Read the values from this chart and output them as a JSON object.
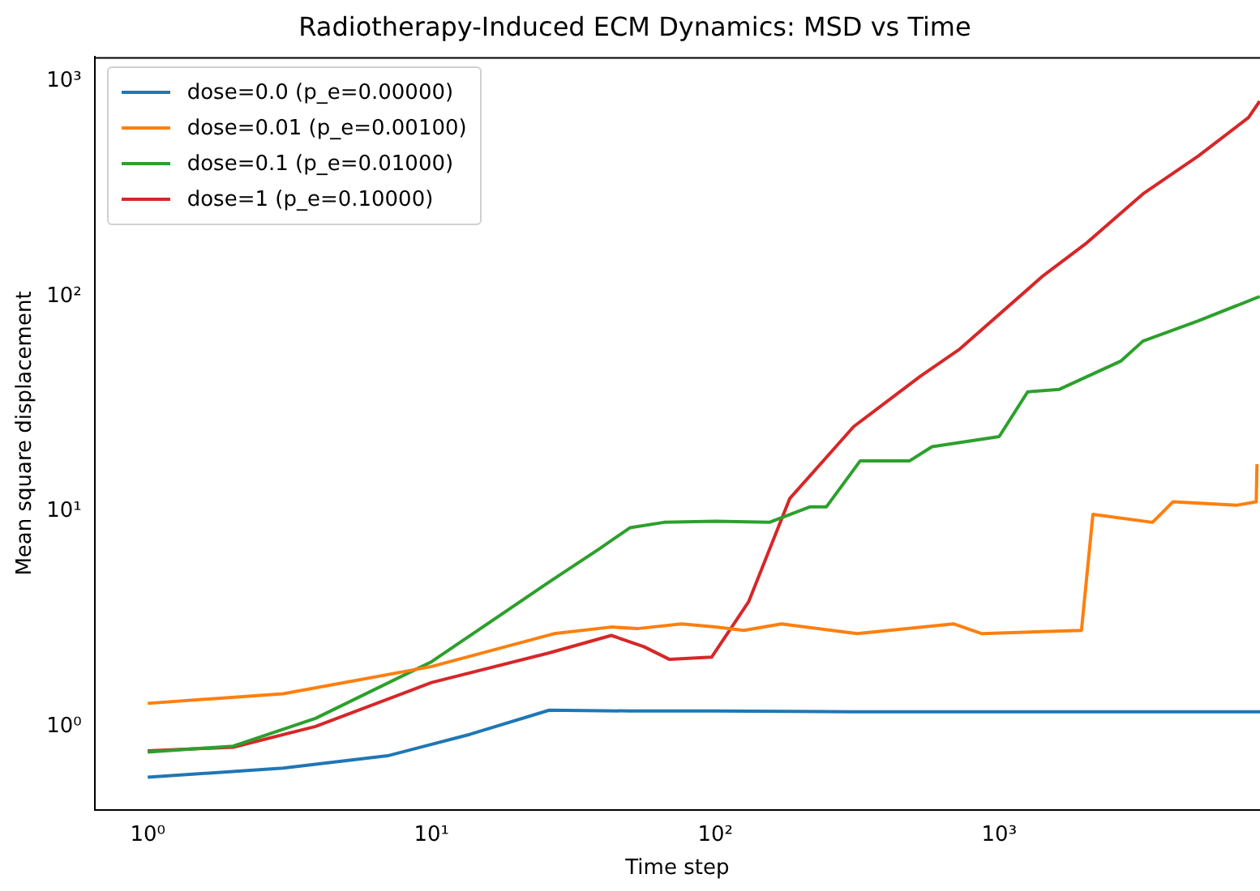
{
  "chart_data": {
    "type": "line",
    "title": "Radiotherapy-Induced ECM Dynamics: MSD vs Time",
    "xlabel": "Time step",
    "ylabel": "Mean square displacement",
    "log": "xy",
    "grid": false,
    "legend": "top left",
    "marker": "none",
    "line_style": "solid",
    "xlim": [
      0.65,
      8300
    ],
    "ylim": [
      0.41,
      1300
    ],
    "xticks": [
      {
        "value": 1,
        "label": "10⁰"
      },
      {
        "value": 10,
        "label": "10¹"
      },
      {
        "value": 100,
        "label": "10²"
      },
      {
        "value": 1000,
        "label": "10³"
      }
    ],
    "yticks": [
      {
        "value": 1,
        "label": "10⁰"
      },
      {
        "value": 10,
        "label": "10¹"
      },
      {
        "value": 100,
        "label": "10²"
      },
      {
        "value": 1000,
        "label": "10³"
      }
    ],
    "series": [
      {
        "name": "dose=0.0 (p_e=0.00000)",
        "color": "#1f77b4",
        "x": [
          1,
          3,
          7,
          13.7,
          26,
          50,
          100,
          300,
          1000,
          3000,
          8300
        ],
        "values": [
          0.58,
          0.64,
          0.73,
          0.92,
          1.19,
          1.18,
          1.18,
          1.17,
          1.17,
          1.17,
          1.17
        ]
      },
      {
        "name": "dose=0.01 (p_e=0.00100)",
        "color": "#ff7f0e",
        "x": [
          1,
          3,
          10,
          27,
          43,
          53,
          76,
          100,
          126,
          171,
          316,
          690,
          870,
          1950,
          2140,
          3470,
          4100,
          6900,
          8050,
          8100
        ],
        "values": [
          1.28,
          1.42,
          1.9,
          2.7,
          2.9,
          2.85,
          3.0,
          2.9,
          2.8,
          3.0,
          2.7,
          3.0,
          2.7,
          2.8,
          9.7,
          8.9,
          11.1,
          10.7,
          11.1,
          16.6
        ]
      },
      {
        "name": "dose=0.1 (p_e=0.01000)",
        "color": "#2ca02c",
        "x": [
          1,
          2,
          3.9,
          10,
          26,
          39,
          50,
          66,
          100,
          155,
          215,
          246,
          324,
          484,
          580,
          1000,
          1260,
          1630,
          2680,
          3210,
          5030,
          8280
        ],
        "values": [
          0.76,
          0.81,
          1.09,
          2.0,
          4.7,
          6.7,
          8.4,
          8.9,
          9.0,
          8.9,
          10.5,
          10.5,
          17.2,
          17.2,
          20,
          22.3,
          36,
          37,
          50,
          62,
          77,
          100
        ]
      },
      {
        "name": "dose=1 (p_e=0.10000)",
        "color": "#d62728",
        "x": [
          1,
          2,
          3.9,
          10,
          26,
          43,
          56,
          69,
          97,
          131,
          183,
          307,
          527,
          727,
          1430,
          2040,
          3210,
          5030,
          7560,
          8280
        ],
        "values": [
          0.77,
          0.8,
          1.0,
          1.6,
          2.2,
          2.65,
          2.35,
          2.05,
          2.1,
          3.8,
          11.5,
          24.8,
          42.5,
          57,
          125,
          178,
          300,
          450,
          680,
          810
        ]
      }
    ]
  }
}
